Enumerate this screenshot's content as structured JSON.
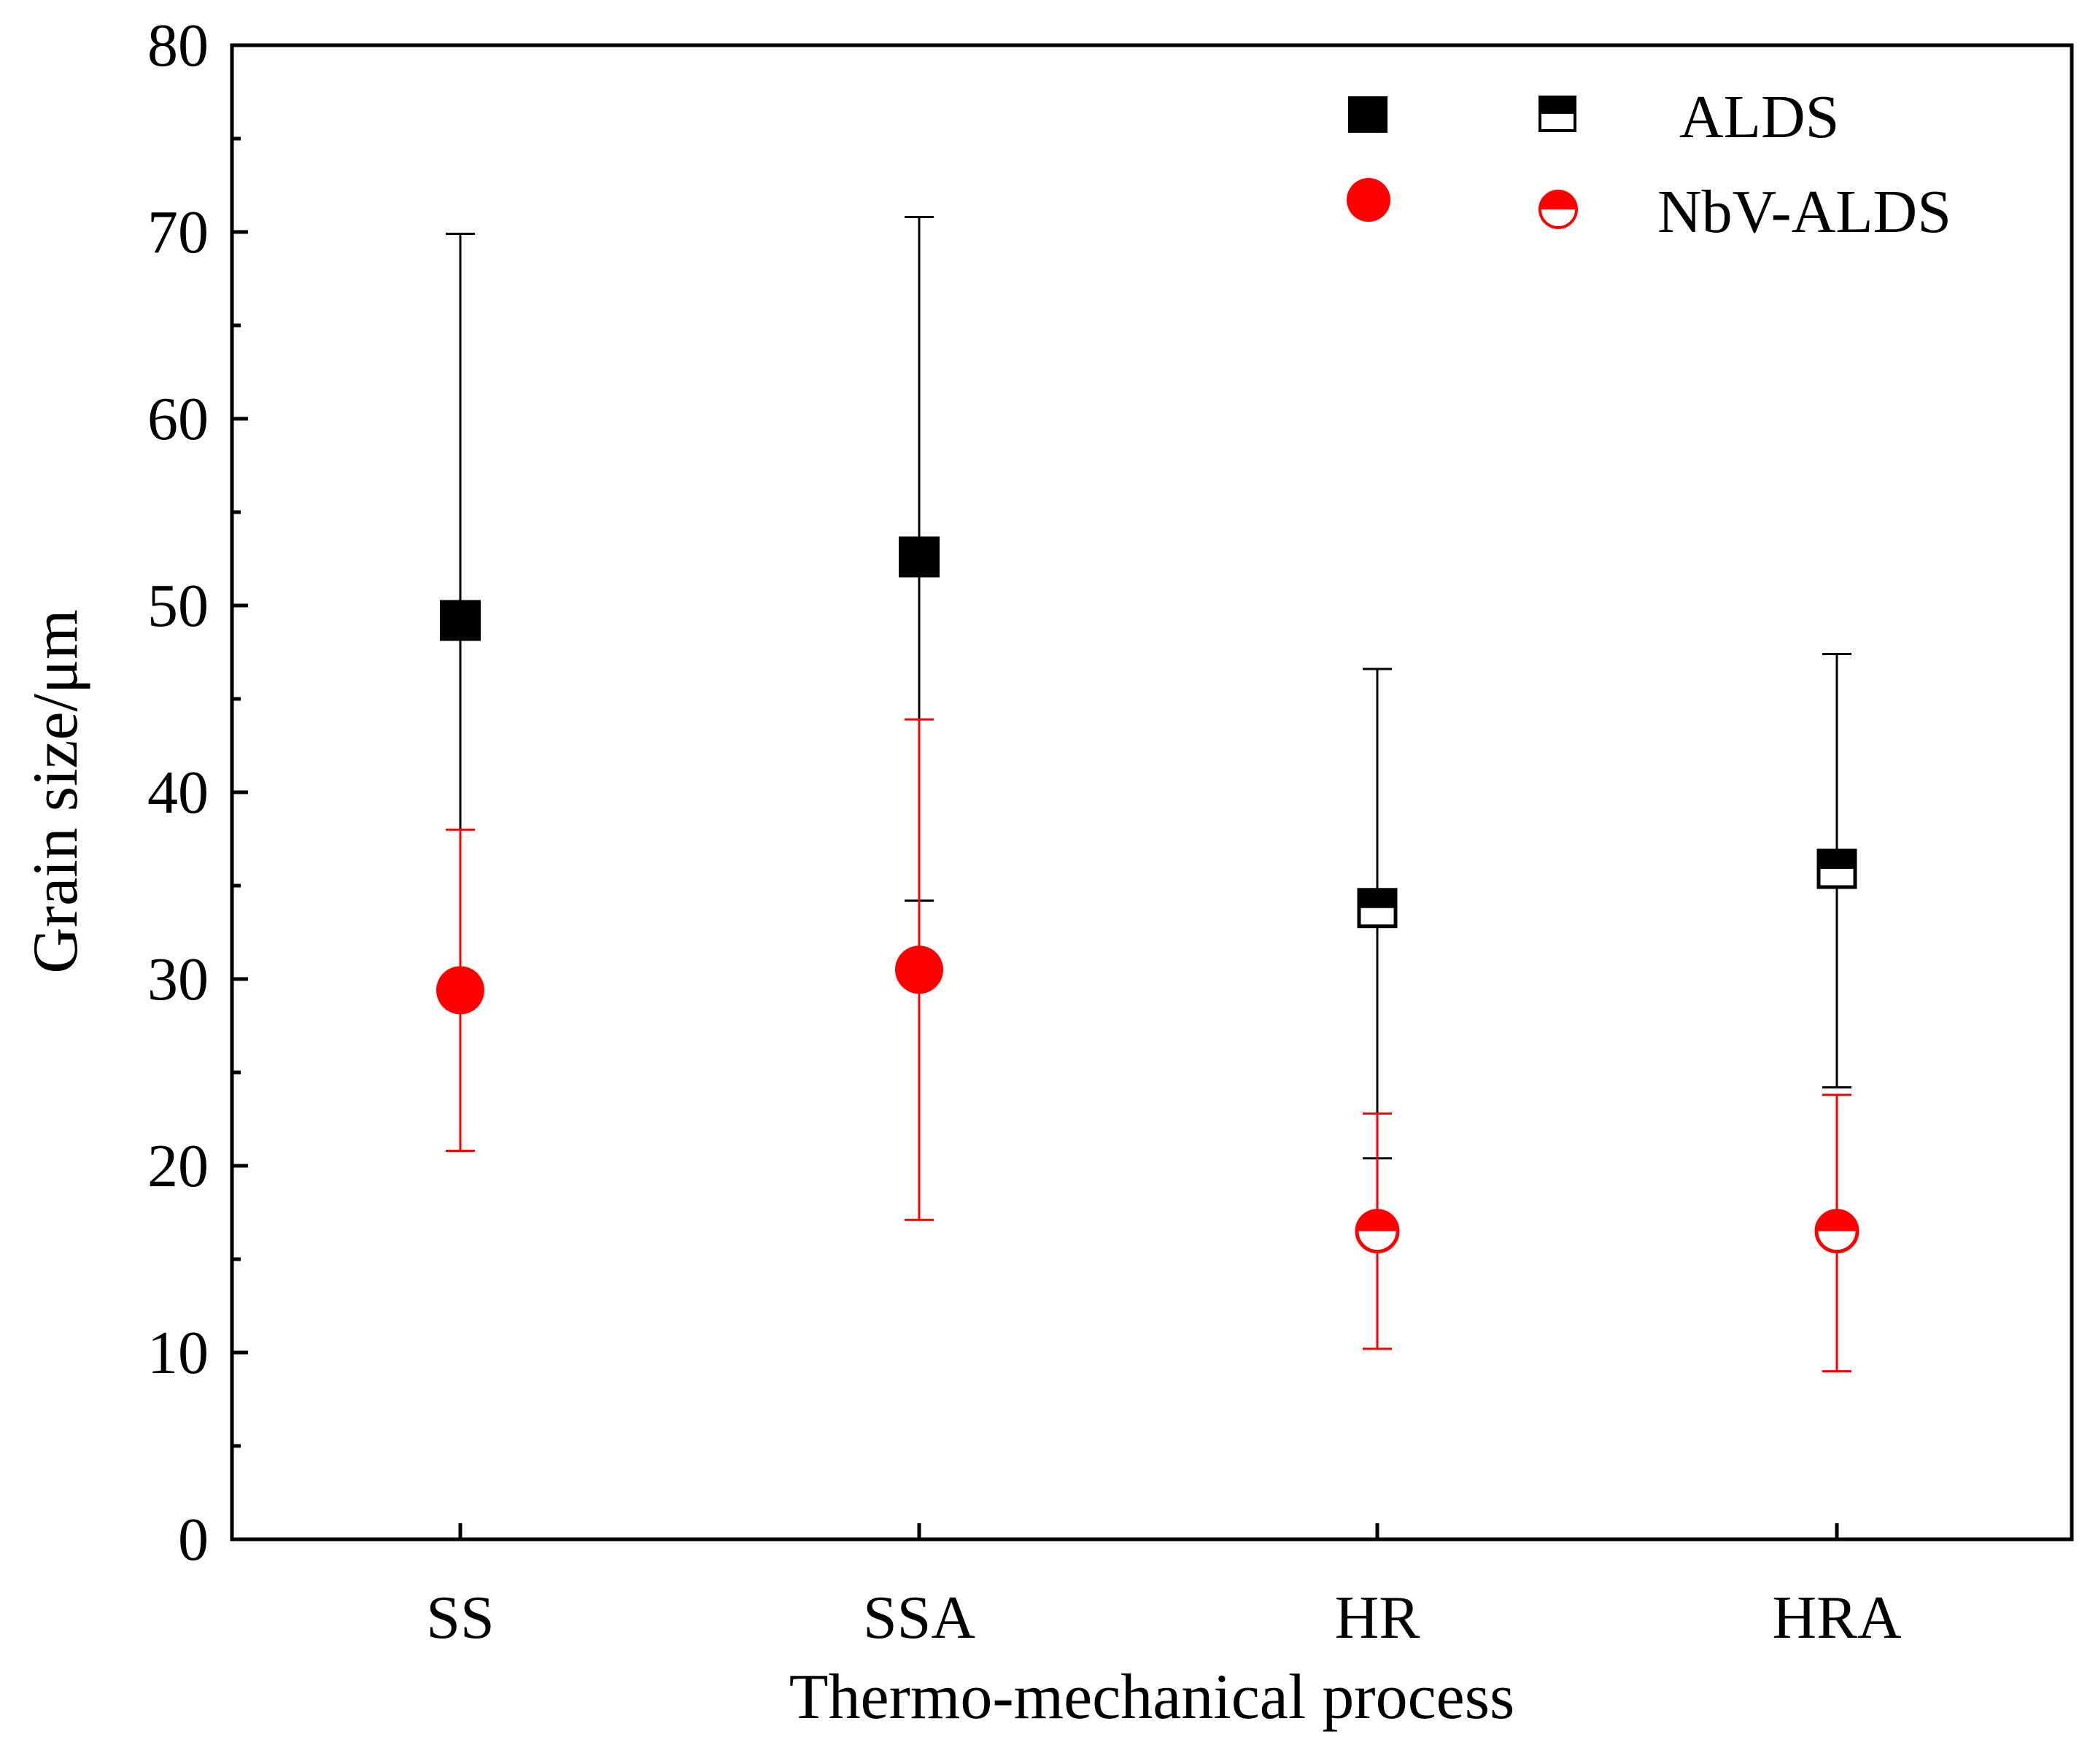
{
  "chart_data": {
    "type": "scatter",
    "title": "",
    "xlabel": "Thermo-mechanical process",
    "ylabel": "Grain size/μm",
    "categories": [
      "SS",
      "SSA",
      "HR",
      "HRA"
    ],
    "ylim": [
      0,
      80
    ],
    "yticks": [
      0,
      10,
      20,
      30,
      40,
      50,
      60,
      70,
      80
    ],
    "grid": false,
    "legend_position": "top-right",
    "series": [
      {
        "name": "ALDS",
        "color": "#000000",
        "marker": "square",
        "values": [
          49.2,
          52.6,
          33.8,
          35.9
        ],
        "error_low": [
          28.4,
          34.2,
          20.4,
          24.2
        ],
        "error_high": [
          69.9,
          70.8,
          46.6,
          47.4
        ],
        "marker_fill": [
          "full",
          "full",
          "half",
          "half"
        ]
      },
      {
        "name": "NbV-ALDS",
        "color": "#ff0000",
        "marker": "circle",
        "values": [
          29.4,
          30.5,
          16.5,
          16.5
        ],
        "error_low": [
          20.8,
          17.1,
          10.2,
          9.0
        ],
        "error_high": [
          38.0,
          43.9,
          22.8,
          23.8
        ],
        "marker_fill": [
          "full",
          "full",
          "half",
          "half"
        ]
      }
    ],
    "legend": [
      {
        "label": "ALDS",
        "marker": "square",
        "color": "#000000"
      },
      {
        "label": "NbV-ALDS",
        "marker": "circle",
        "color": "#ff0000"
      }
    ]
  }
}
